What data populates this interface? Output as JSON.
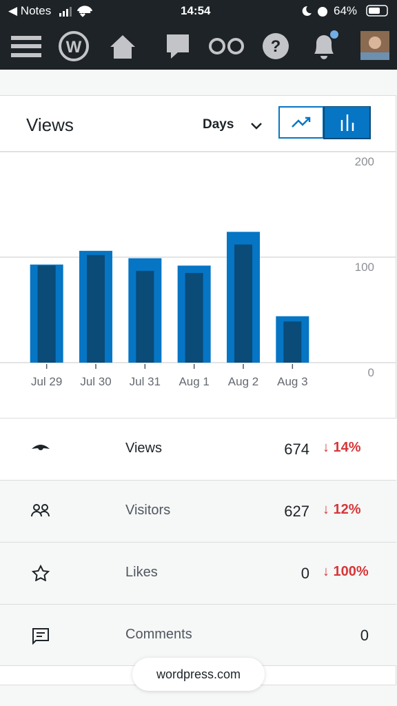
{
  "status_bar": {
    "back": "◀ Notes",
    "time": "14:54",
    "battery": "64%"
  },
  "card": {
    "title": "Views",
    "period": "Days"
  },
  "chart_data": {
    "type": "bar",
    "categories": [
      "Jul 29",
      "Jul 30",
      "Jul 31",
      "Aug 1",
      "Aug 2",
      "Aug 3"
    ],
    "series": [
      {
        "color": "#0675c4",
        "values": [
          93,
          106,
          99,
          92,
          124,
          44
        ]
      },
      {
        "color": "#0a4b78",
        "values": [
          92,
          102,
          87,
          85,
          112,
          39
        ]
      }
    ],
    "ylim": [
      0,
      200
    ],
    "yticks": [
      0,
      100,
      200
    ],
    "grid": true
  },
  "stats": {
    "rows": [
      {
        "label": "Views",
        "value": 674,
        "change": "↓ 14%"
      },
      {
        "label": "Visitors",
        "value": 627,
        "change": "↓ 12%"
      },
      {
        "label": "Likes",
        "value": 0,
        "change": "↓ 100%"
      },
      {
        "label": "Comments",
        "value": 0
      }
    ]
  },
  "footer": {
    "domain": "wordpress.com"
  }
}
